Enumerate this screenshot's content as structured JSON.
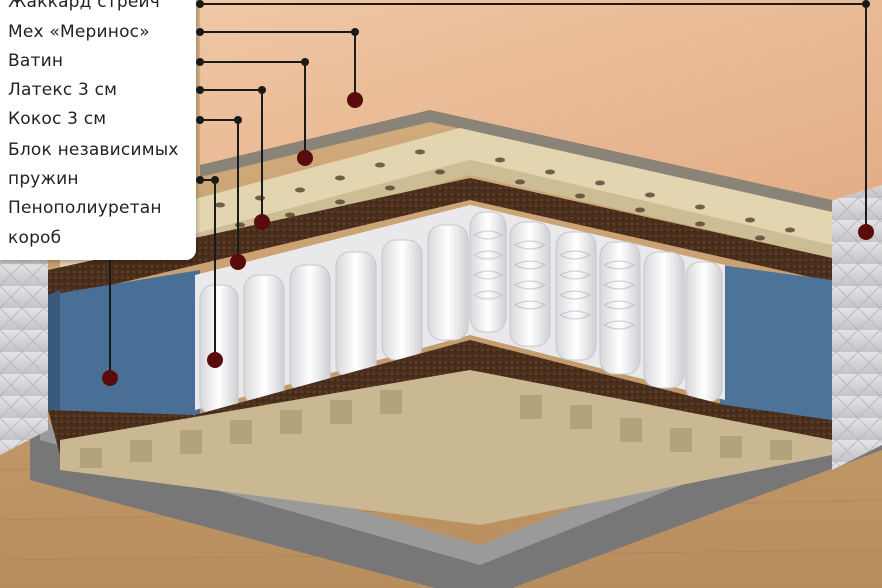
{
  "labels": [
    {
      "id": "jacquard",
      "text": "Жаккард стрейч"
    },
    {
      "id": "merinos",
      "text": "Мех «Меринос»"
    },
    {
      "id": "vatin",
      "text": "Ватин"
    },
    {
      "id": "latex",
      "text": "Латекс 3 см"
    },
    {
      "id": "coconut",
      "text": "Кокос 3 см"
    },
    {
      "id": "springs_line1",
      "text": "Блок независимых"
    },
    {
      "id": "springs_line2",
      "text": "пружин"
    },
    {
      "id": "foam",
      "text": "Пенополиуретан"
    },
    {
      "id": "box",
      "text": "короб"
    }
  ],
  "colors": {
    "jacquard_top": "#e8b894",
    "jacquard_side": "#d9d9db",
    "latex": "#e2d4ae",
    "coconut": "#4a2e1c",
    "foam_blue": "#4a6f96",
    "springs": "#f4f4f4",
    "box": "#8d8d8d",
    "floor": "#c69e6c",
    "callout_dot": "#5a0c0c"
  }
}
